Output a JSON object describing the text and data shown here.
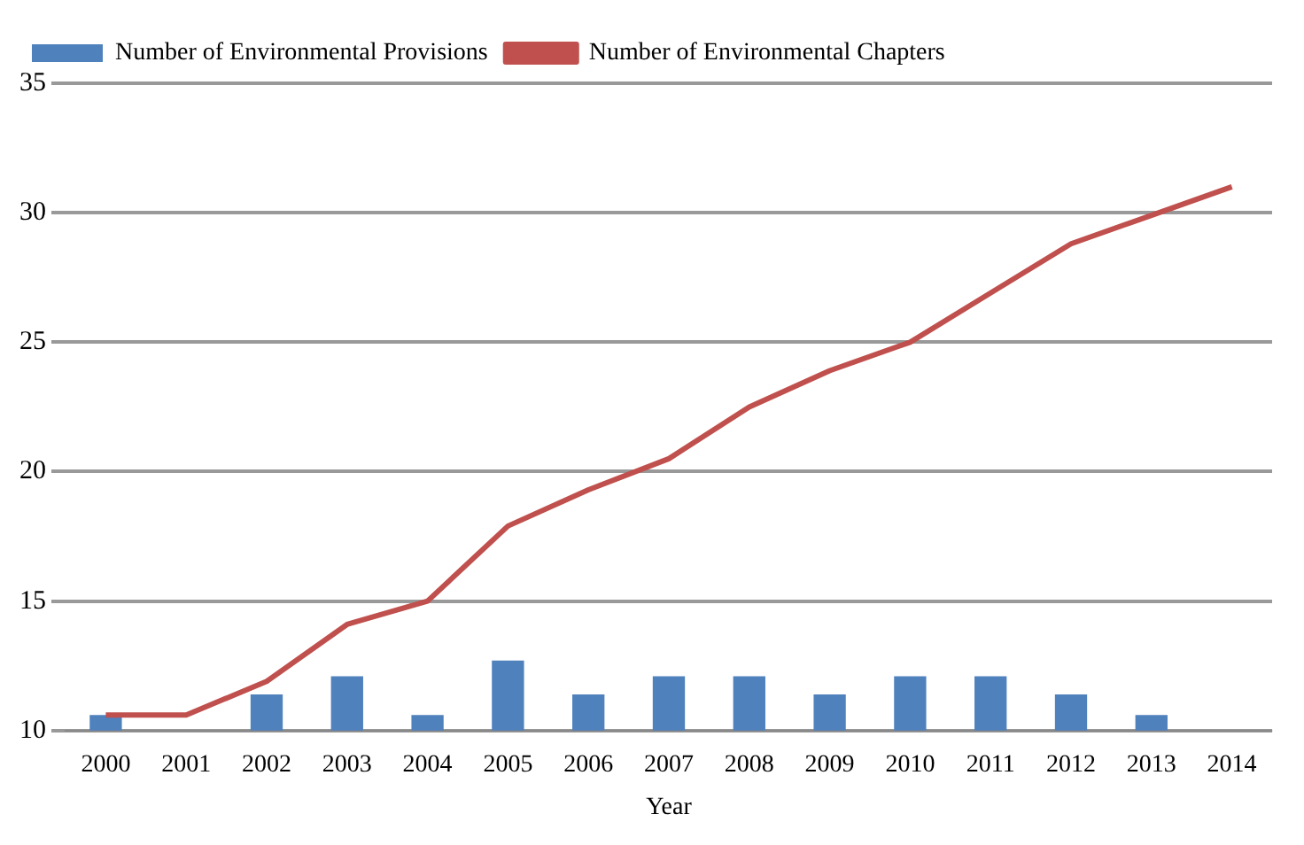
{
  "chart_data": {
    "type": "bar",
    "xlabel": "Year",
    "categories": [
      "2000",
      "2001",
      "2002",
      "2003",
      "2004",
      "2005",
      "2006",
      "2007",
      "2008",
      "2009",
      "2010",
      "2011",
      "2012",
      "2013",
      "2014"
    ],
    "series": [
      {
        "name": "Number of Environmental Provisions",
        "color": "#4f81bd",
        "values": [
          10.6,
          null,
          11.4,
          12.1,
          10.6,
          12.7,
          11.4,
          12.1,
          12.1,
          11.4,
          12.1,
          12.1,
          11.4,
          10.6,
          null
        ]
      },
      {
        "name": "Number of Environmental Chapters",
        "type": "line",
        "color": "#c0504d",
        "values": [
          10.6,
          10.6,
          11.9,
          14.1,
          15.0,
          17.9,
          19.3,
          20.5,
          22.5,
          23.9,
          25.0,
          26.9,
          28.8,
          29.9,
          31.0
        ]
      }
    ],
    "ylim": [
      10,
      35
    ],
    "yticks": [
      10,
      15,
      20,
      25,
      30,
      35
    ],
    "grid": "y",
    "legend": "top left",
    "marker": "none"
  }
}
